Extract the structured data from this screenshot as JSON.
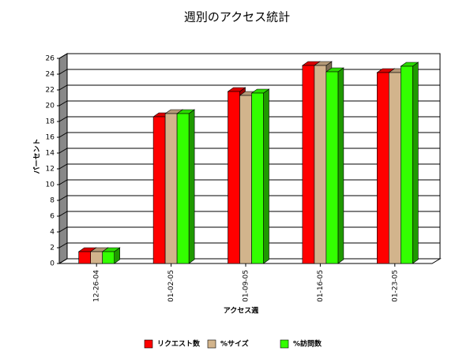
{
  "chart_data": {
    "type": "bar3d",
    "title": "週別のアクセス統計",
    "x_label": "アクセス週",
    "y_label": "パーセント",
    "categories": [
      "12-26-04",
      "01-02-05",
      "01-09-05",
      "01-16-05",
      "01-23-05"
    ],
    "series": [
      {
        "name": "リクエスト数",
        "color": "#ff0000",
        "values": [
          1.5,
          18.6,
          21.8,
          25.1,
          24.2
        ]
      },
      {
        "name": "%サイズ",
        "color": "#d2b48c",
        "values": [
          1.5,
          19.0,
          21.3,
          25.1,
          24.2
        ]
      },
      {
        "name": "%訪問数",
        "color": "#33ff00",
        "values": [
          1.5,
          19.0,
          21.6,
          24.3,
          25.0
        ]
      }
    ],
    "ylim": [
      0,
      26
    ],
    "yticks": [
      0,
      2,
      4,
      6,
      8,
      10,
      12,
      14,
      16,
      18,
      20,
      22,
      24,
      26
    ],
    "grid": true
  }
}
